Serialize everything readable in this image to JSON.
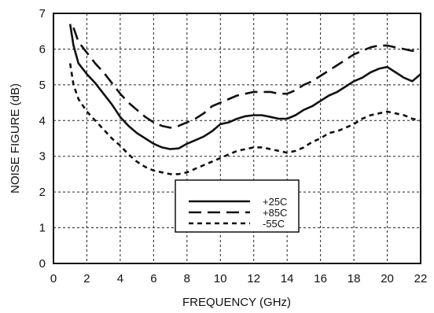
{
  "chart_data": {
    "type": "line",
    "title": "",
    "xlabel": "FREQUENCY (GHz)",
    "ylabel": "NOISE FIGURE (dB)",
    "xlim": [
      0,
      22
    ],
    "ylim": [
      0,
      7
    ],
    "xticks": [
      0,
      2,
      4,
      6,
      8,
      10,
      12,
      14,
      16,
      18,
      20,
      22
    ],
    "yticks": [
      0,
      1,
      2,
      3,
      4,
      5,
      6,
      7
    ],
    "grid": true,
    "legend_position": "bottom-center",
    "series": [
      {
        "name": "+25C",
        "dash": "solid",
        "color": "#111111",
        "x": [
          1.0,
          1.2,
          1.5,
          2.0,
          2.5,
          3.0,
          3.5,
          4.0,
          4.5,
          5.0,
          5.5,
          6.0,
          6.5,
          7.0,
          7.5,
          8.0,
          8.5,
          9.0,
          9.5,
          10.0,
          10.5,
          11.0,
          11.5,
          12.0,
          12.5,
          13.0,
          13.5,
          14.0,
          14.5,
          15.0,
          15.5,
          16.0,
          16.5,
          17.0,
          17.5,
          18.0,
          18.5,
          19.0,
          19.5,
          20.0,
          20.5,
          21.0,
          21.5,
          22.0
        ],
        "y": [
          6.7,
          6.1,
          5.6,
          5.3,
          5.05,
          4.75,
          4.45,
          4.1,
          3.85,
          3.65,
          3.5,
          3.35,
          3.25,
          3.2,
          3.22,
          3.35,
          3.45,
          3.55,
          3.7,
          3.9,
          3.95,
          4.05,
          4.12,
          4.15,
          4.15,
          4.1,
          4.05,
          4.05,
          4.15,
          4.3,
          4.4,
          4.55,
          4.7,
          4.8,
          4.95,
          5.1,
          5.2,
          5.35,
          5.45,
          5.5,
          5.35,
          5.2,
          5.1,
          5.3
        ]
      },
      {
        "name": "+85C",
        "dash": "long-dash",
        "color": "#111111",
        "x": [
          1.2,
          1.5,
          2.0,
          2.5,
          3.0,
          3.5,
          4.0,
          4.5,
          5.0,
          5.5,
          6.0,
          6.5,
          7.0,
          7.5,
          8.0,
          8.5,
          9.0,
          9.5,
          10.0,
          10.5,
          11.0,
          11.5,
          12.0,
          12.5,
          13.0,
          13.5,
          14.0,
          14.5,
          15.0,
          15.5,
          16.0,
          16.5,
          17.0,
          17.5,
          18.0,
          18.5,
          19.0,
          19.5,
          20.0,
          20.5,
          21.0,
          21.5,
          22.0
        ],
        "y": [
          6.6,
          6.2,
          5.9,
          5.6,
          5.35,
          5.05,
          4.75,
          4.5,
          4.3,
          4.1,
          3.95,
          3.85,
          3.8,
          3.85,
          3.95,
          4.05,
          4.2,
          4.4,
          4.5,
          4.6,
          4.7,
          4.75,
          4.8,
          4.8,
          4.8,
          4.75,
          4.75,
          4.85,
          5.0,
          5.1,
          5.25,
          5.4,
          5.55,
          5.7,
          5.85,
          5.95,
          6.05,
          6.1,
          6.1,
          6.05,
          6.0,
          5.95,
          6.0
        ]
      },
      {
        "name": "-55C",
        "dash": "short-dash",
        "color": "#111111",
        "x": [
          1.0,
          1.2,
          1.5,
          2.0,
          2.5,
          3.0,
          3.5,
          4.0,
          4.5,
          5.0,
          5.5,
          6.0,
          6.5,
          7.0,
          7.5,
          8.0,
          8.5,
          9.0,
          9.5,
          10.0,
          10.5,
          11.0,
          11.5,
          12.0,
          12.5,
          13.0,
          13.5,
          14.0,
          14.5,
          15.0,
          15.5,
          16.0,
          16.5,
          17.0,
          17.5,
          18.0,
          18.5,
          19.0,
          19.5,
          20.0,
          20.5,
          21.0,
          21.5,
          22.0
        ],
        "y": [
          5.6,
          5.0,
          4.6,
          4.25,
          4.0,
          3.75,
          3.5,
          3.3,
          3.05,
          2.85,
          2.7,
          2.6,
          2.55,
          2.5,
          2.5,
          2.55,
          2.65,
          2.75,
          2.85,
          2.95,
          3.05,
          3.15,
          3.2,
          3.25,
          3.25,
          3.2,
          3.15,
          3.1,
          3.15,
          3.25,
          3.4,
          3.5,
          3.65,
          3.7,
          3.8,
          3.9,
          4.05,
          4.15,
          4.2,
          4.25,
          4.2,
          4.15,
          4.05,
          4.0
        ]
      }
    ]
  }
}
